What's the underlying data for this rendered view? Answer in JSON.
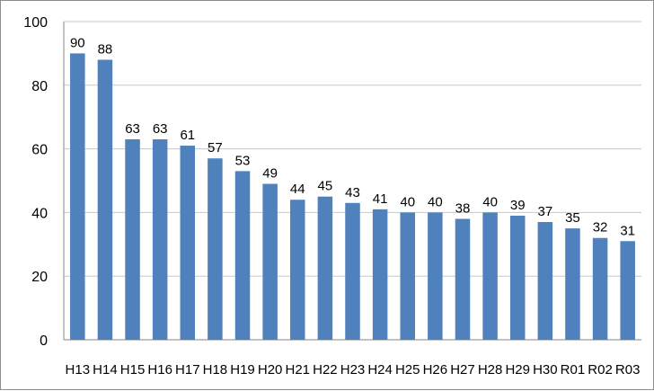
{
  "chart_data": {
    "type": "bar",
    "title": "",
    "xlabel": "",
    "ylabel": "",
    "categories": [
      "H13",
      "H14",
      "H15",
      "H16",
      "H17",
      "H18",
      "H19",
      "H20",
      "H21",
      "H22",
      "H23",
      "H24",
      "H25",
      "H26",
      "H27",
      "H28",
      "H29",
      "H30",
      "R01",
      "R02",
      "R03"
    ],
    "values": [
      90,
      88,
      63,
      63,
      61,
      57,
      53,
      49,
      44,
      45,
      43,
      41,
      40,
      40,
      38,
      40,
      39,
      37,
      35,
      32,
      31
    ],
    "ylim": [
      0,
      100
    ],
    "yticks": [
      0,
      20,
      40,
      60,
      80,
      100
    ],
    "grid": true,
    "legend": "none",
    "bar_color": "#4f81bd",
    "grid_color": "#c8c8c8"
  }
}
